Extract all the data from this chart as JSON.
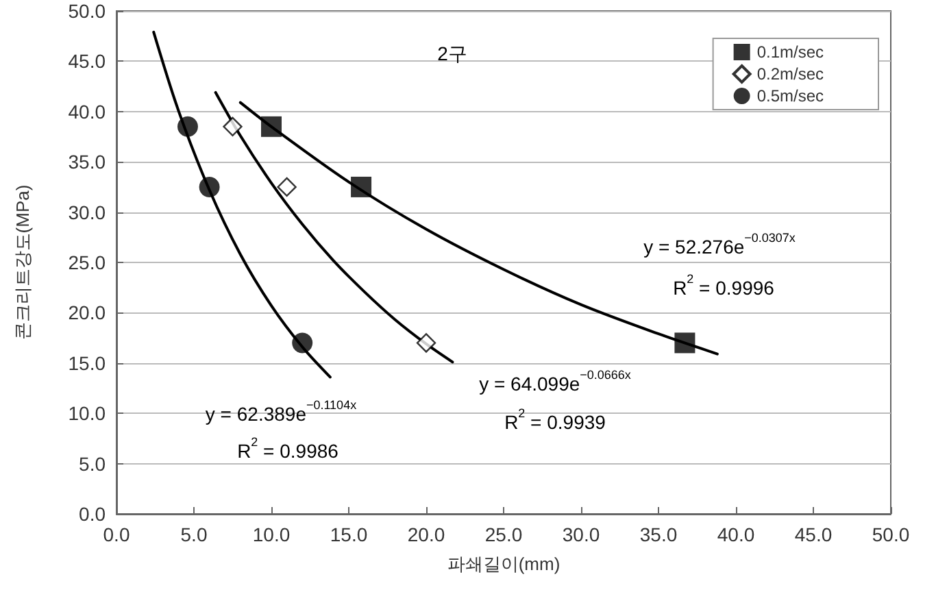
{
  "chart_data": {
    "type": "scatter",
    "xlabel": "파쇄길이(mm)",
    "ylabel": "콘크리트강도(MPa)",
    "xlim": [
      0,
      50
    ],
    "ylim": [
      0,
      50
    ],
    "xticks": [
      {
        "value": 0,
        "label": "0.0"
      },
      {
        "value": 5,
        "label": "5.0"
      },
      {
        "value": 10,
        "label": "10.0"
      },
      {
        "value": 15,
        "label": "15.0"
      },
      {
        "value": 20,
        "label": "20.0"
      },
      {
        "value": 25,
        "label": "25.0"
      },
      {
        "value": 30,
        "label": "30.0"
      },
      {
        "value": 35,
        "label": "35.0"
      },
      {
        "value": 40,
        "label": "40.0"
      },
      {
        "value": 45,
        "label": "45.0"
      },
      {
        "value": 50,
        "label": "50.0"
      }
    ],
    "yticks": [
      {
        "value": 0,
        "label": "0.0"
      },
      {
        "value": 5,
        "label": "5.0"
      },
      {
        "value": 10,
        "label": "10.0"
      },
      {
        "value": 15,
        "label": "15.0"
      },
      {
        "value": 20,
        "label": "20.0"
      },
      {
        "value": 25,
        "label": "25.0"
      },
      {
        "value": 30,
        "label": "30.0"
      },
      {
        "value": 35,
        "label": "35.0"
      },
      {
        "value": 40,
        "label": "40.0"
      },
      {
        "value": 45,
        "label": "45.0"
      },
      {
        "value": 50,
        "label": "50.0"
      }
    ],
    "grid": "y",
    "legend": "top right",
    "series": [
      {
        "name": "0.1m/sec",
        "color": "#000000",
        "marker": "square",
        "x": [
          10,
          15.8,
          36.7
        ],
        "values": [
          38.5,
          32.5,
          17
        ]
      },
      {
        "name": "0.2m/sec",
        "color": "#000000",
        "marker": "diamond",
        "x": [
          7.5,
          11,
          20
        ],
        "values": [
          38.5,
          32.5,
          17
        ]
      },
      {
        "name": "0.5m/sec",
        "color": "#000000",
        "marker": "circle",
        "x": [
          4.6,
          6,
          12
        ],
        "values": [
          38.5,
          32.5,
          17
        ]
      },
      {
        "type": "line",
        "color": "#000000",
        "marker": "none",
        "x": [
          8,
          10,
          15,
          20,
          25,
          30,
          35,
          38.8
        ],
        "values": [
          40.9,
          38.5,
          33.0,
          28.3,
          24.3,
          20.8,
          17.9,
          15.9
        ]
      },
      {
        "type": "line",
        "color": "#000000",
        "marker": "none",
        "x": [
          6.4,
          8,
          10,
          12,
          14,
          16,
          18,
          20,
          21.7
        ],
        "values": [
          41.9,
          37.6,
          32.9,
          28.8,
          25.2,
          22.1,
          19.3,
          16.9,
          15.1
        ]
      },
      {
        "type": "line",
        "color": "#000000",
        "marker": "none",
        "x": [
          2.4,
          4,
          6,
          8,
          10,
          12,
          13.8
        ],
        "values": [
          47.9,
          40.1,
          32.2,
          25.8,
          20.7,
          16.6,
          13.6
        ]
      }
    ],
    "annotations": [
      "2구",
      "y = 52.276e$^{−0.0307x}$",
      "R$^{2}$ = 0.9996",
      "y = 64.099e$^{−0.0666x}$",
      "R$^{2}$ = 0.9939",
      "y = 62.389e$^{−0.1104x}$",
      "R$^{2}$ = 0.9986"
    ]
  }
}
